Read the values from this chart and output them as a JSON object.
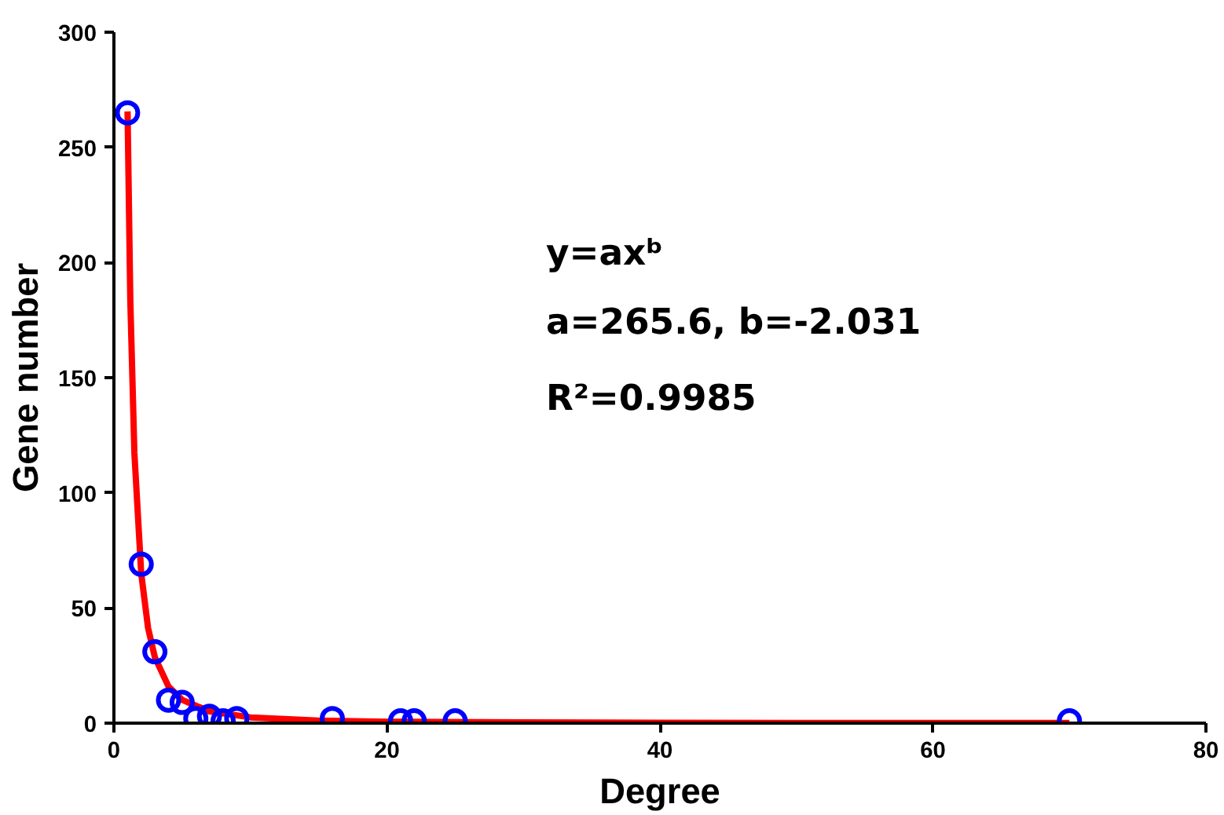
{
  "chart_data": {
    "type": "scatter",
    "xlabel": "Degree",
    "ylabel": "Gene number",
    "xlim": [
      0,
      80
    ],
    "ylim": [
      0,
      300
    ],
    "xticks": [
      0,
      20,
      40,
      60,
      80
    ],
    "yticks": [
      0,
      50,
      100,
      150,
      200,
      250,
      300
    ],
    "grid": false,
    "series": [
      {
        "color": "#0000ff",
        "marker": "circle",
        "x": [
          1,
          2,
          3,
          4,
          5,
          6,
          7,
          8,
          9,
          16,
          21,
          22,
          25,
          70
        ],
        "values": [
          265,
          69,
          31,
          10,
          9,
          2,
          3,
          1,
          2,
          2,
          1,
          1,
          1,
          1
        ]
      },
      {
        "type": "line",
        "color": "#ff0000",
        "marker": "none",
        "line_style": "solid",
        "x": [
          1,
          1.2,
          1.5,
          2,
          2.5,
          3,
          4,
          5,
          7,
          10,
          15,
          20,
          30,
          40,
          50,
          60,
          70
        ],
        "values": [
          265.6,
          183.9,
          117.3,
          65,
          41.4,
          28.6,
          15.9,
          10.1,
          5.1,
          2.5,
          1.1,
          0.6,
          0.3,
          0.2,
          0.1,
          0.1,
          0.1
        ]
      }
    ],
    "annotations": [
      "y=axᵇ",
      "a=265.6, b=-2.031",
      "R²=0.9985"
    ]
  }
}
